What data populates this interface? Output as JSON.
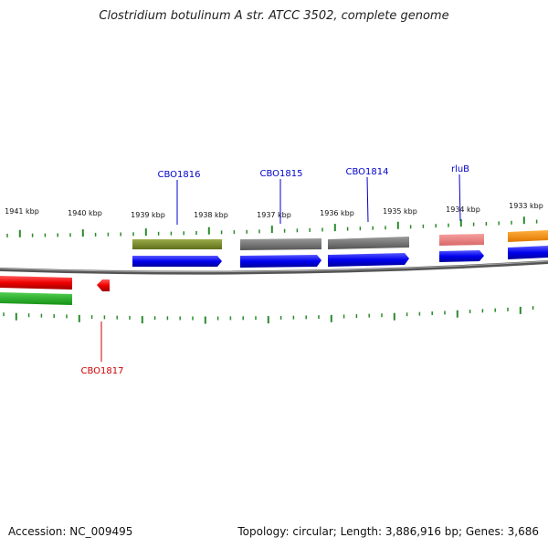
{
  "title": "Clostridium botulinum A str. ATCC 3502, complete genome",
  "footer": {
    "accession_label": "Accession:",
    "accession": "NC_009495",
    "topology_text": "Topology: circular; Length: 3,886,916 bp; Genes: 3,686"
  },
  "ticks": [
    {
      "label": "1941 kbp",
      "kbp": 1941
    },
    {
      "label": "1940 kbp",
      "kbp": 1940
    },
    {
      "label": "1939 kbp",
      "kbp": 1939
    },
    {
      "label": "1938 kbp",
      "kbp": 1938
    },
    {
      "label": "1937 kbp",
      "kbp": 1937
    },
    {
      "label": "1936 kbp",
      "kbp": 1936
    },
    {
      "label": "1935 kbp",
      "kbp": 1935
    },
    {
      "label": "1934 kbp",
      "kbp": 1934
    },
    {
      "label": "1933 kbp",
      "kbp": 1933
    }
  ],
  "genes": [
    {
      "label": "CBO1816",
      "strand": "forward",
      "color": "#0000cc"
    },
    {
      "label": "CBO1815",
      "strand": "forward",
      "color": "#0000cc"
    },
    {
      "label": "CBO1814",
      "strand": "forward",
      "color": "#0000cc"
    },
    {
      "label": "rluB",
      "strand": "forward",
      "color": "#0000cc"
    },
    {
      "label": "CBO1817",
      "strand": "reverse",
      "color": "#cc0000"
    }
  ],
  "colors": {
    "forward_cds": "#0000ee",
    "reverse_cds": "#ee0000",
    "backbone": "#777777",
    "ticks": "#2a8a2a"
  }
}
